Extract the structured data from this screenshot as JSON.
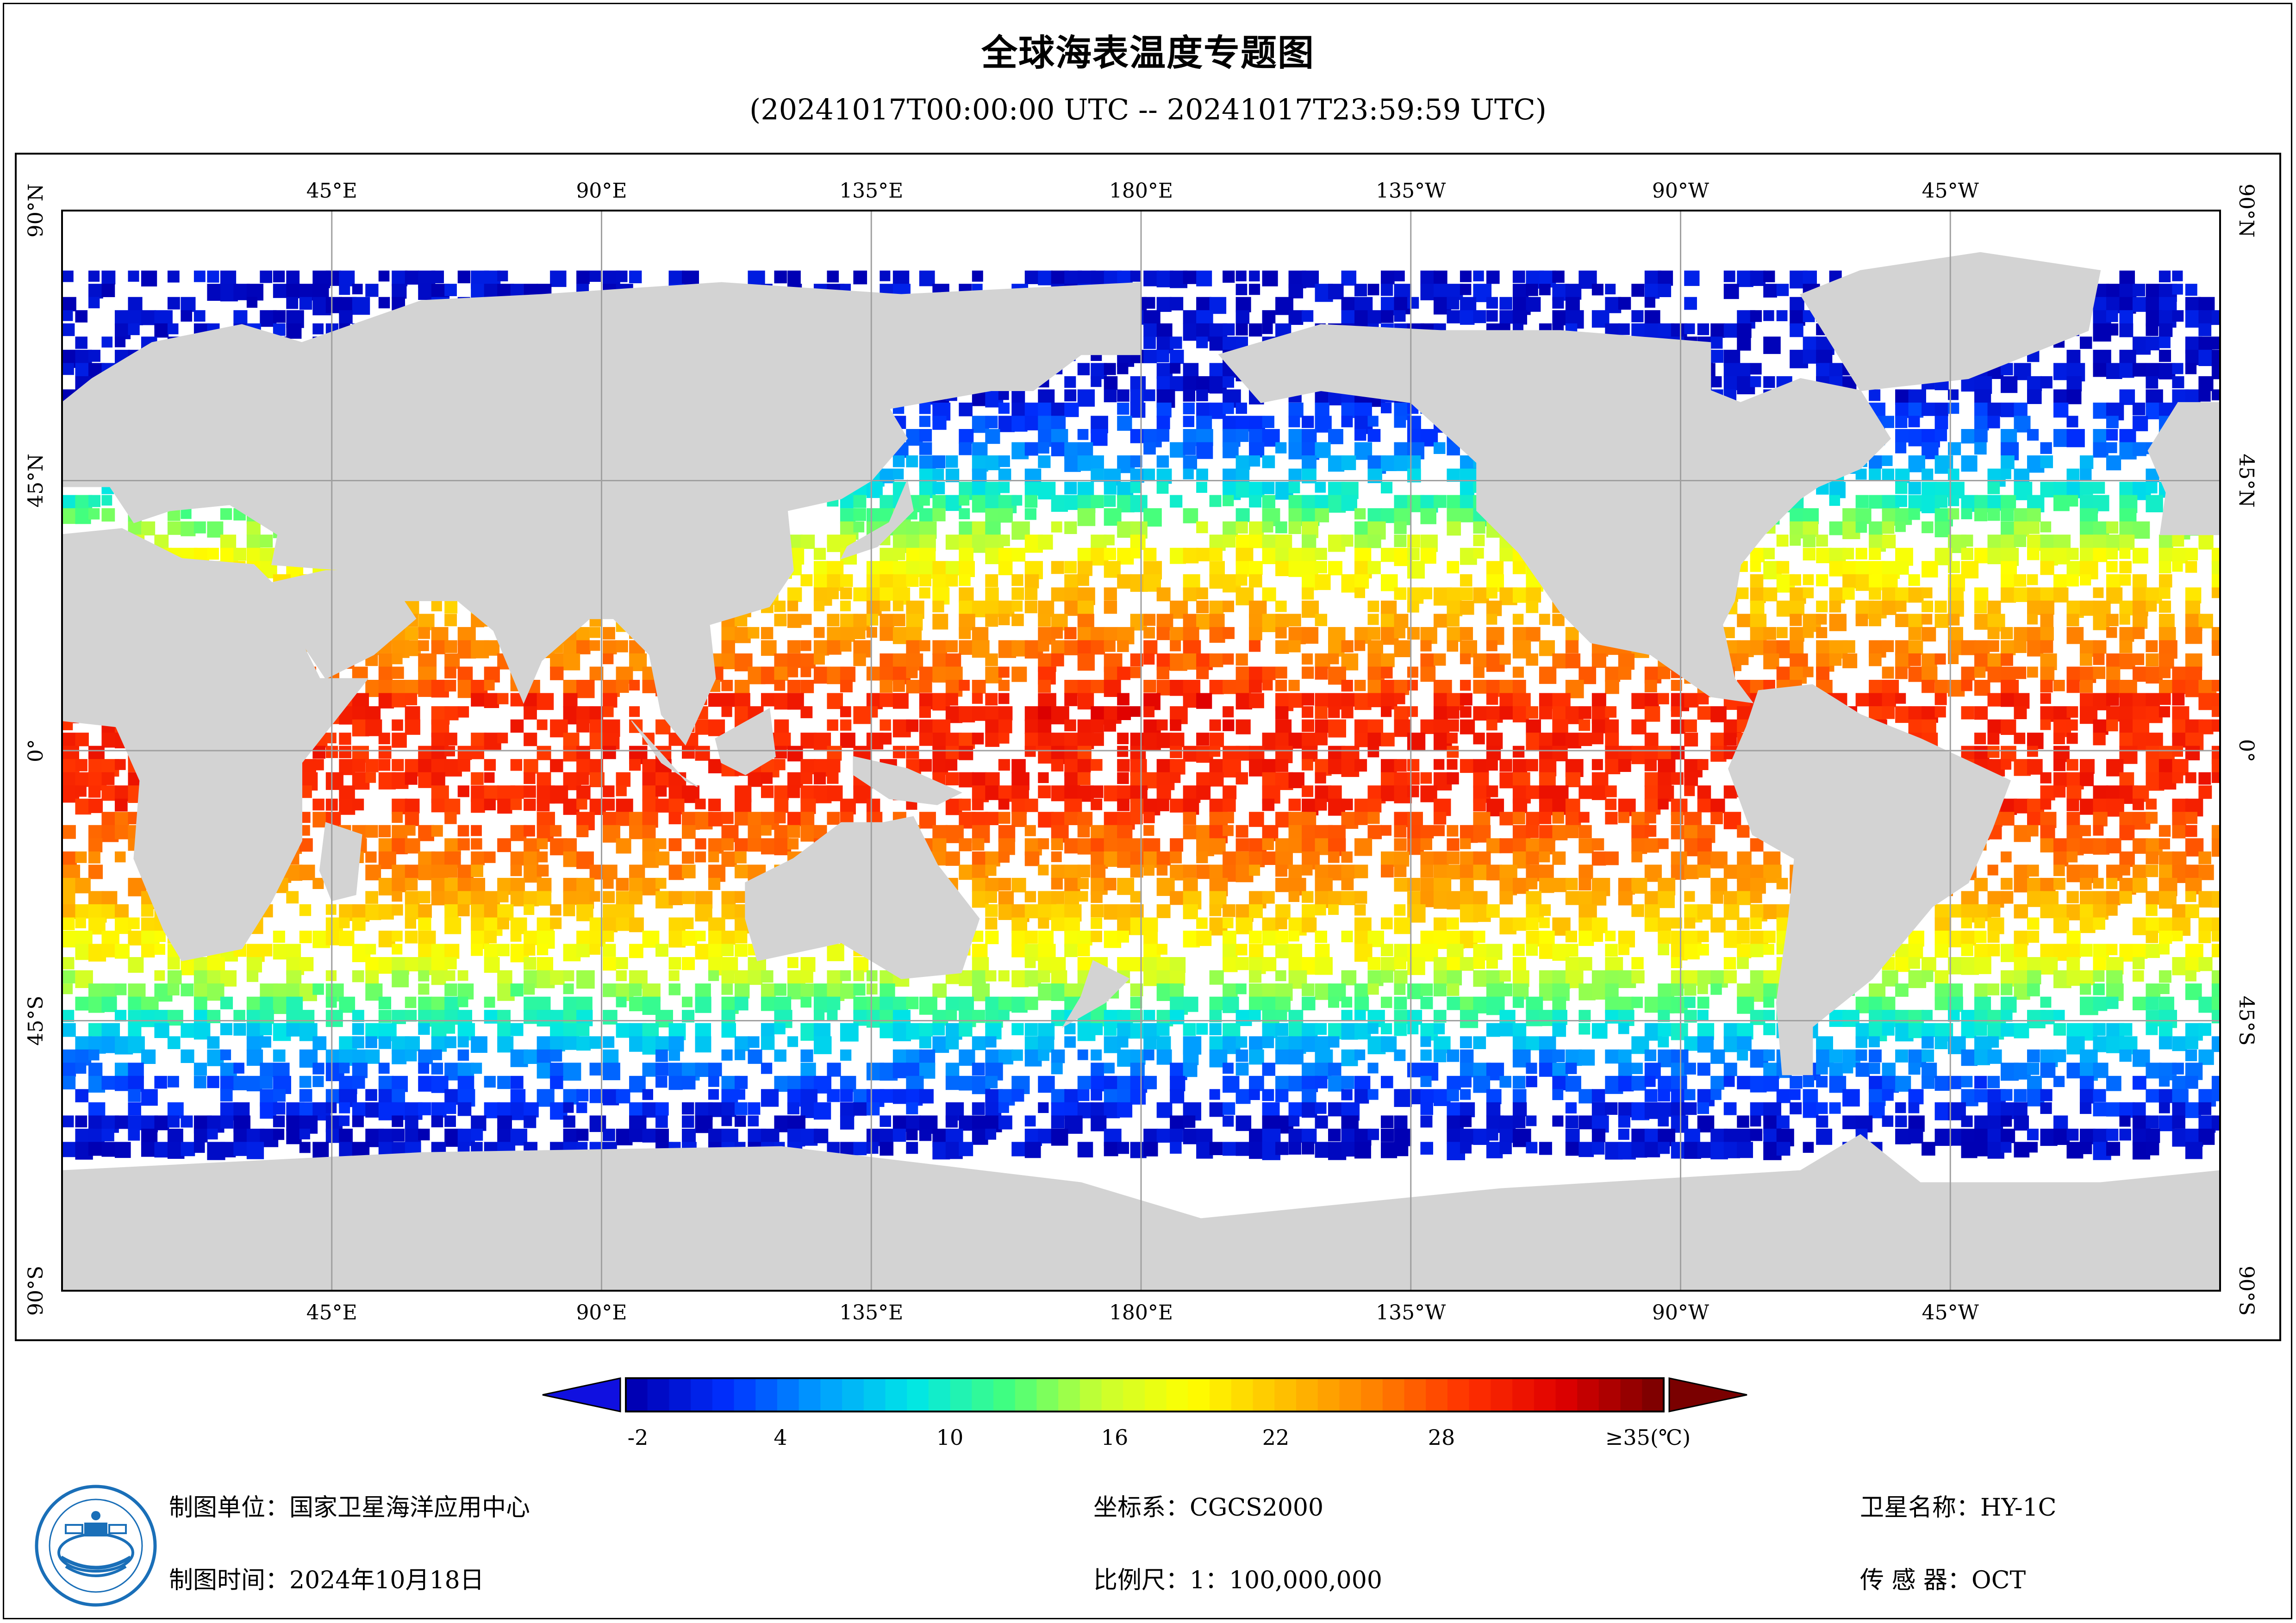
{
  "title": "全球海表温度专题图",
  "subtitle": "(20241017T00:00:00 UTC -- 20241017T23:59:59 UTC)",
  "map": {
    "top_lon_labels": [
      "45°E",
      "90°E",
      "135°E",
      "180°E",
      "135°W",
      "90°W",
      "45°W"
    ],
    "bottom_lon_labels": [
      "45°E",
      "90°E",
      "135°E",
      "180°E",
      "135°W",
      "90°W",
      "45°W"
    ],
    "left_lat_labels": [
      "90°N",
      "45°N",
      "0°",
      "45°S",
      "90°S"
    ],
    "right_lat_labels": [
      "90°N",
      "45°N",
      "0°",
      "45°S",
      "90°S"
    ],
    "land_color": "#d3d3d3",
    "ocean_color": "#ffffff",
    "grid_color": "#a0a0a0"
  },
  "colorbar": {
    "ticks": [
      "-2",
      "4",
      "10",
      "16",
      "22",
      "28",
      "≥35(℃)"
    ],
    "min": -2,
    "max": 35,
    "stops": [
      "#0000b4",
      "#0030ff",
      "#00a0ff",
      "#00e6e6",
      "#40ff80",
      "#c8ff30",
      "#ffff00",
      "#ffc000",
      "#ff8000",
      "#ff3000",
      "#e00000",
      "#800000"
    ],
    "low_arrow_color": "#1010e0",
    "high_arrow_color": "#7a0000"
  },
  "footer": {
    "unit": "制图单位：国家卫星海洋应用中心",
    "time": "制图时间：2024年10月18日",
    "crs": "坐标系：CGCS2000",
    "scale": "比例尺：1：100,000,000",
    "satellite": "卫星名称：HY-1C",
    "sensor": "传 感 器：OCT"
  },
  "logo": {
    "icon": "nsoas-emblem-icon",
    "color": "#1a6fb8"
  }
}
